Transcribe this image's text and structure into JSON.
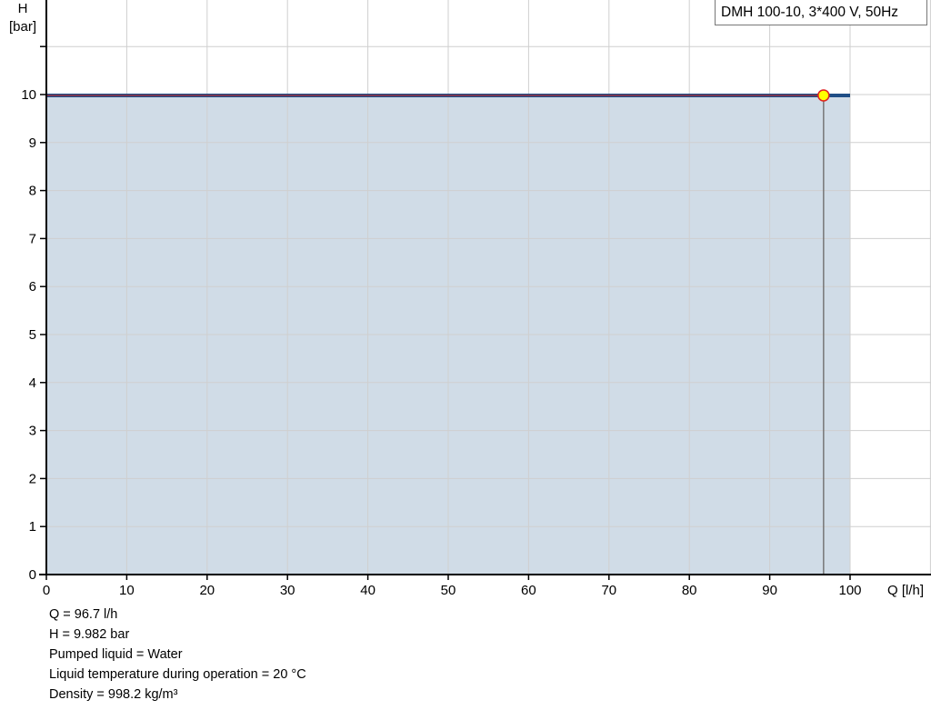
{
  "chart_data": {
    "type": "area",
    "legend": "DMH 100-10, 3*400 V, 50Hz",
    "legend_placement": "top-right",
    "xlabel": "Q [l/h]",
    "ylabel_line1": "H",
    "ylabel_line2": "[bar]",
    "xlim": [
      0,
      110
    ],
    "ylim": [
      0,
      12
    ],
    "grid": true,
    "x_ticks": [
      0,
      10,
      20,
      30,
      40,
      50,
      60,
      70,
      80,
      90,
      100
    ],
    "y_ticks": [
      0,
      1,
      2,
      3,
      4,
      5,
      6,
      7,
      8,
      9,
      10
    ],
    "series": [
      {
        "x": [
          0,
          100
        ],
        "y": [
          9.982,
          9.982
        ],
        "color": "#1f4e86",
        "fill": "#d0dce7"
      }
    ],
    "operating_point": {
      "q": 96.7,
      "h": 9.982,
      "color": "#ffff00",
      "stroke": "#e02020"
    }
  },
  "info": {
    "lines": [
      "Q = 96.7 l/h",
      "H = 9.982 bar",
      "Pumped liquid = Water",
      "Liquid temperature during operation = 20 °C",
      "Density = 998.2 kg/m³"
    ]
  }
}
